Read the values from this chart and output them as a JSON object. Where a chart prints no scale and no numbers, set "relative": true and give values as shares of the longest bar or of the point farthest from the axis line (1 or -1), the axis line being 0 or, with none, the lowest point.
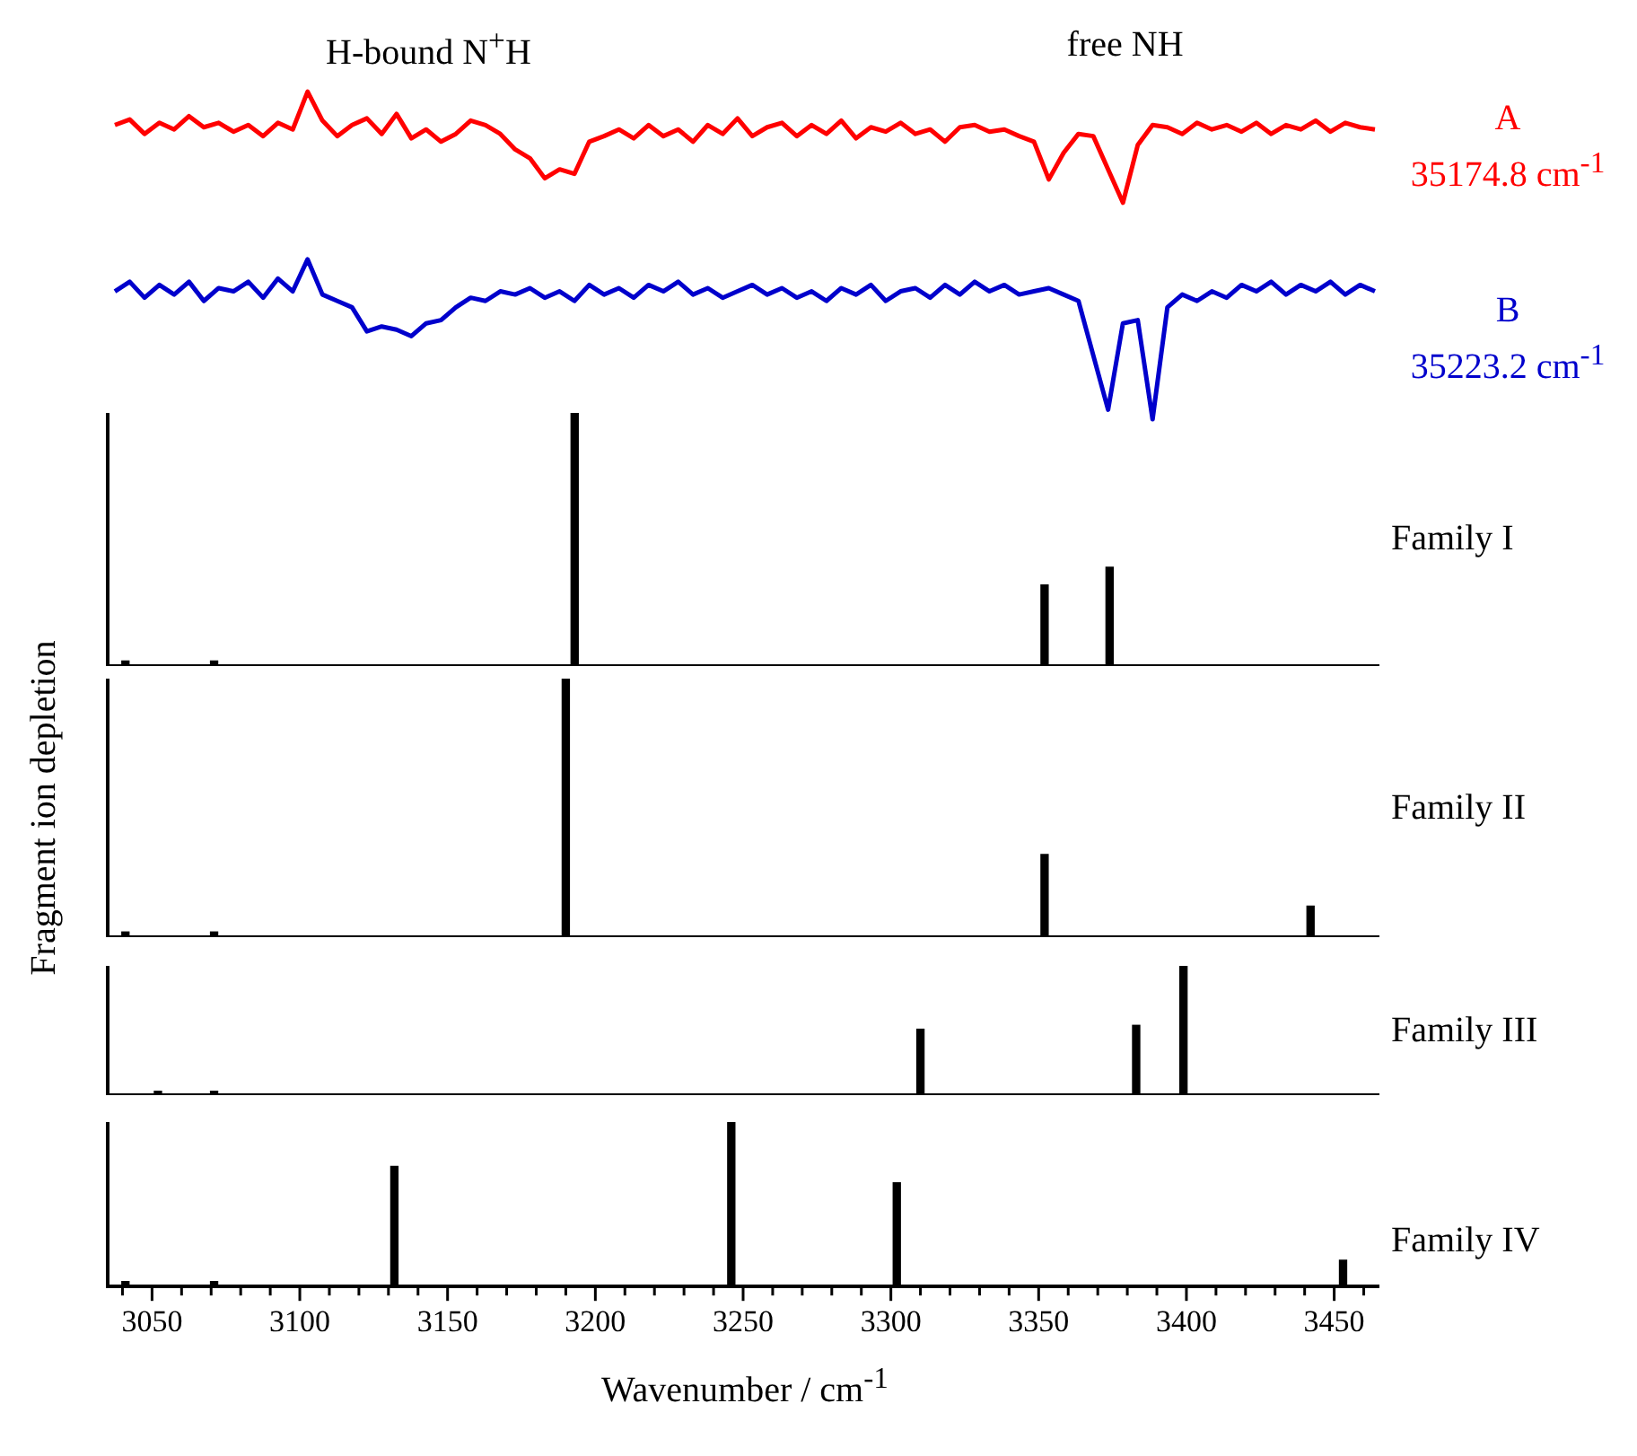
{
  "chart_data": [
    {
      "type": "line",
      "relative": true,
      "marker": "none",
      "annotations": [
        "H-bound N$^{+}$H",
        "free NH",
        "35174.8 cm$^{-1}$"
      ],
      "categories": [
        null,
        null,
        null,
        null,
        null,
        null,
        null,
        null,
        null,
        null,
        null,
        null,
        null,
        null,
        null,
        null,
        null,
        null,
        null,
        null,
        null,
        null,
        null,
        null,
        null,
        null,
        null,
        null,
        null,
        null,
        null,
        null,
        null,
        null,
        null,
        null,
        null,
        null,
        null,
        null,
        null,
        null,
        null,
        null,
        null,
        null,
        null,
        null,
        null,
        null,
        null,
        null,
        null,
        null,
        null,
        null,
        null,
        null,
        null,
        null,
        null,
        null,
        null,
        null,
        null,
        null,
        null,
        null,
        null,
        null,
        null,
        null,
        null,
        null,
        null,
        null,
        null,
        null,
        null,
        null,
        null,
        null,
        null,
        null,
        null,
        null
      ],
      "series": [
        {
          "name": "A",
          "color": "#ff0000",
          "values": [
            0.7,
            0.75,
            0.62,
            0.72,
            0.66,
            0.78,
            0.68,
            0.72,
            0.64,
            0.7,
            0.6,
            0.72,
            0.66,
            1.0,
            0.74,
            0.6,
            0.7,
            0.76,
            0.62,
            0.8,
            0.58,
            0.66,
            0.55,
            0.62,
            0.74,
            0.7,
            0.62,
            0.48,
            0.4,
            0.22,
            0.3,
            0.26,
            0.55,
            0.6,
            0.66,
            0.58,
            0.7,
            0.6,
            0.66,
            0.55,
            0.7,
            0.62,
            0.76,
            0.6,
            0.68,
            0.72,
            0.6,
            0.7,
            0.62,
            0.74,
            0.58,
            0.68,
            0.64,
            0.72,
            0.62,
            0.66,
            0.55,
            0.68,
            0.7,
            0.64,
            0.66,
            0.6,
            0.55,
            0.21,
            0.45,
            0.62,
            0.6,
            0.3,
            0.0,
            0.52,
            0.7,
            0.68,
            0.62,
            0.72,
            0.66,
            0.7,
            0.64,
            0.72,
            0.62,
            0.7,
            0.66,
            0.74,
            0.64,
            0.72,
            0.68,
            0.66
          ]
        }
      ]
    },
    {
      "type": "line",
      "relative": true,
      "marker": "none",
      "annotations": [
        "35223.2 cm$^{-1}$"
      ],
      "categories": [
        null,
        null,
        null,
        null,
        null,
        null,
        null,
        null,
        null,
        null,
        null,
        null,
        null,
        null,
        null,
        null,
        null,
        null,
        null,
        null,
        null,
        null,
        null,
        null,
        null,
        null,
        null,
        null,
        null,
        null,
        null,
        null,
        null,
        null,
        null,
        null,
        null,
        null,
        null,
        null,
        null,
        null,
        null,
        null,
        null,
        null,
        null,
        null,
        null,
        null,
        null,
        null,
        null,
        null,
        null,
        null,
        null,
        null,
        null,
        null,
        null,
        null,
        null,
        null,
        null,
        null,
        null,
        null,
        null,
        null,
        null,
        null,
        null,
        null,
        null,
        null,
        null,
        null,
        null,
        null,
        null,
        null,
        null,
        null,
        null,
        null
      ],
      "series": [
        {
          "name": "B",
          "color": "#0000cc",
          "values": [
            0.8,
            0.86,
            0.76,
            0.84,
            0.78,
            0.86,
            0.74,
            0.82,
            0.8,
            0.86,
            0.76,
            0.88,
            0.8,
            1.0,
            0.78,
            0.74,
            0.7,
            0.55,
            0.58,
            0.56,
            0.52,
            0.6,
            0.62,
            0.7,
            0.76,
            0.74,
            0.8,
            0.78,
            0.82,
            0.76,
            0.8,
            0.74,
            0.84,
            0.78,
            0.82,
            0.76,
            0.84,
            0.8,
            0.86,
            0.78,
            0.82,
            0.76,
            0.8,
            0.84,
            0.78,
            0.82,
            0.76,
            0.8,
            0.74,
            0.82,
            0.78,
            0.84,
            0.74,
            0.8,
            0.82,
            0.76,
            0.84,
            0.78,
            0.86,
            0.8,
            0.84,
            0.78,
            0.8,
            0.82,
            0.78,
            0.74,
            0.4,
            0.06,
            0.6,
            0.62,
            0.0,
            0.7,
            0.78,
            0.74,
            0.8,
            0.76,
            0.84,
            0.8,
            0.86,
            0.78,
            0.84,
            0.8,
            0.86,
            0.78,
            0.84,
            0.8
          ]
        }
      ]
    },
    {
      "type": "bar",
      "relative": true,
      "xlim": [
        3035,
        3465
      ],
      "tick_labels": false,
      "x": [
        3041,
        3071,
        3193,
        3352,
        3374
      ],
      "series": [
        {
          "name": "Family I",
          "color": "#000000",
          "values": [
            0.02,
            0.02,
            1,
            0.32,
            0.39
          ]
        }
      ]
    },
    {
      "type": "bar",
      "relative": true,
      "xlim": [
        3035,
        3465
      ],
      "tick_labels": false,
      "ylabel": "Fragment ion depletion",
      "x": [
        3041,
        3071,
        3190,
        3352,
        3442
      ],
      "series": [
        {
          "name": "Family II",
          "color": "#000000",
          "values": [
            0.02,
            0.02,
            1,
            0.32,
            0.12
          ]
        }
      ]
    },
    {
      "type": "bar",
      "relative": true,
      "xlim": [
        3035,
        3465
      ],
      "tick_labels": false,
      "x": [
        3052,
        3071,
        3310,
        3383,
        3399
      ],
      "series": [
        {
          "name": "Family III",
          "color": "#000000",
          "values": [
            0.03,
            0.03,
            0.51,
            0.54,
            1
          ]
        }
      ]
    },
    {
      "type": "bar",
      "relative": true,
      "xlim": [
        3035,
        3465
      ],
      "xlabel": "Wavenumber / cm$^{-1}$",
      "x": [
        3041,
        3071,
        3132,
        3246,
        3302,
        3453
      ],
      "xticks": [
        {
          "value": 3040,
          "label": null
        },
        3050,
        {
          "value": 3060,
          "label": null
        },
        {
          "value": 3070,
          "label": null
        },
        {
          "value": 3080,
          "label": null
        },
        {
          "value": 3090,
          "label": null
        },
        3100,
        {
          "value": 3110,
          "label": null
        },
        {
          "value": 3120,
          "label": null
        },
        {
          "value": 3130,
          "label": null
        },
        {
          "value": 3140,
          "label": null
        },
        3150,
        {
          "value": 3160,
          "label": null
        },
        {
          "value": 3170,
          "label": null
        },
        {
          "value": 3180,
          "label": null
        },
        {
          "value": 3190,
          "label": null
        },
        3200,
        {
          "value": 3210,
          "label": null
        },
        {
          "value": 3220,
          "label": null
        },
        {
          "value": 3230,
          "label": null
        },
        {
          "value": 3240,
          "label": null
        },
        3250,
        {
          "value": 3260,
          "label": null
        },
        {
          "value": 3270,
          "label": null
        },
        {
          "value": 3280,
          "label": null
        },
        {
          "value": 3290,
          "label": null
        },
        3300,
        {
          "value": 3310,
          "label": null
        },
        {
          "value": 3320,
          "label": null
        },
        {
          "value": 3330,
          "label": null
        },
        {
          "value": 3340,
          "label": null
        },
        3350,
        {
          "value": 3360,
          "label": null
        },
        {
          "value": 3370,
          "label": null
        },
        {
          "value": 3380,
          "label": null
        },
        {
          "value": 3390,
          "label": null
        },
        3400,
        {
          "value": 3410,
          "label": null
        },
        {
          "value": 3420,
          "label": null
        },
        {
          "value": 3430,
          "label": null
        },
        {
          "value": 3440,
          "label": null
        },
        3450,
        {
          "value": 3460,
          "label": null
        }
      ],
      "series": [
        {
          "name": "Family IV",
          "color": "#000000",
          "values": [
            0.03,
            0.03,
            0.73,
            1,
            0.63,
            0.16
          ]
        }
      ]
    }
  ]
}
